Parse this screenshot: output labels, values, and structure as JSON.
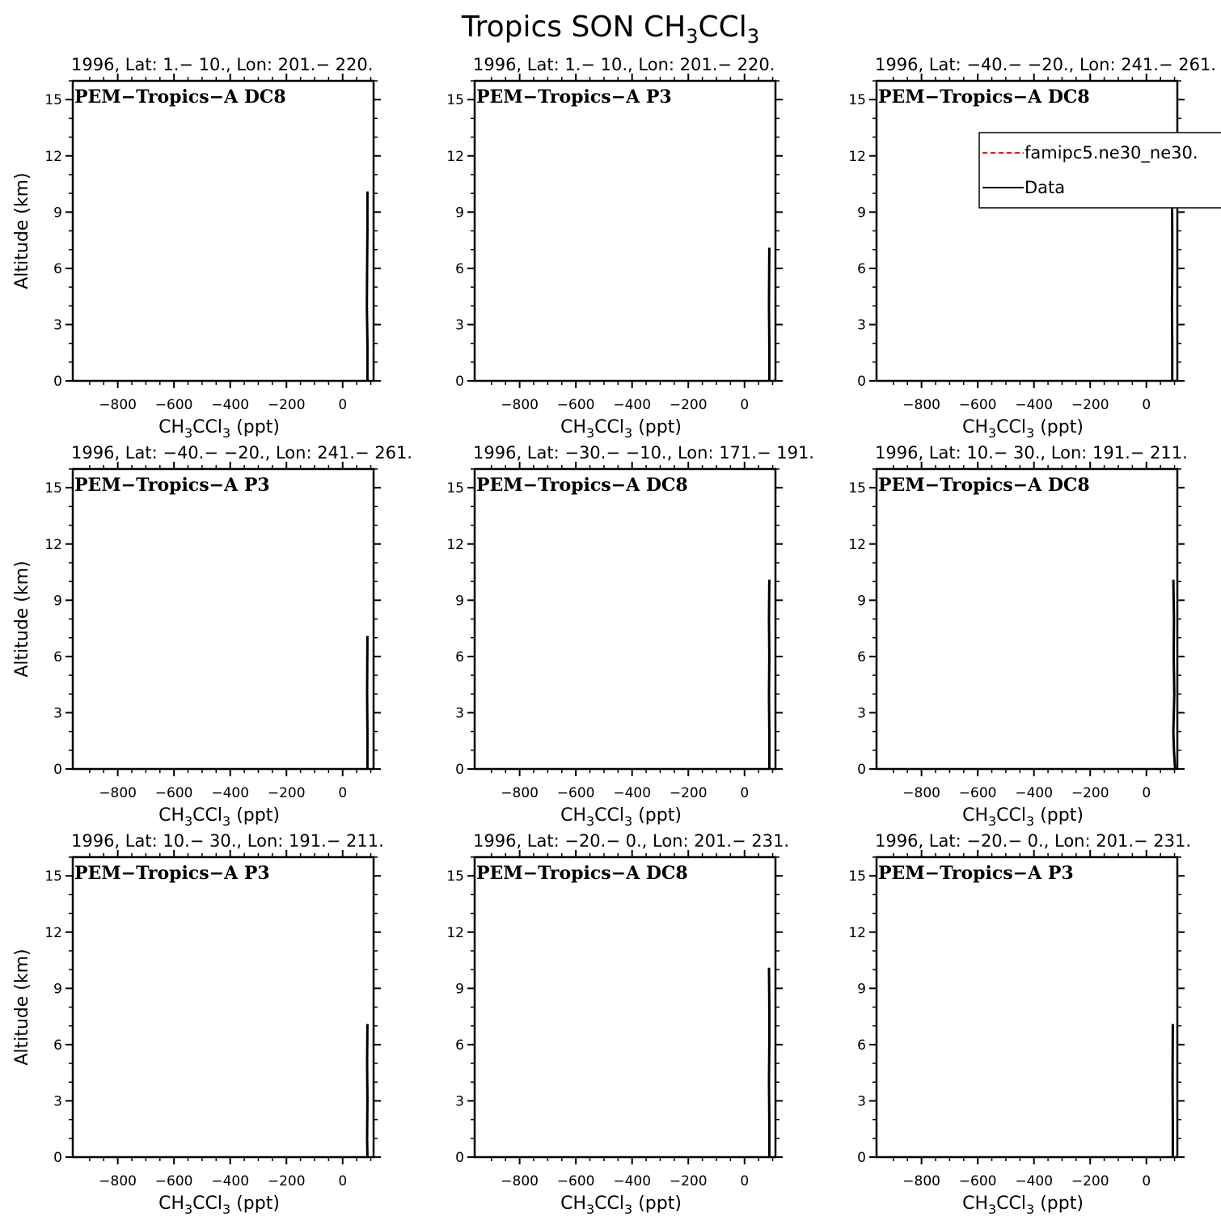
{
  "figure": {
    "title_main": "Tropics SON CH",
    "title_sub": "3",
    "title_tail": "CCl",
    "title_sub2": "3"
  },
  "xaxis": {
    "label_main": "CH",
    "label_sub": "3",
    "label_mid": "CCl",
    "label_sub2": "3",
    "label_tail": " (ppt)",
    "range": [
      -960,
      110
    ],
    "ticks": [
      -800,
      -600,
      -400,
      -200,
      0
    ],
    "tick_labels": [
      "−800",
      "−600",
      "−400",
      "−200",
      "0"
    ]
  },
  "yaxis": {
    "label": "Altitude (km)",
    "range": [
      0,
      16
    ],
    "ticks": [
      0,
      3,
      6,
      9,
      12,
      15
    ],
    "tick_labels": [
      "0",
      "3",
      "6",
      "9",
      "12",
      "15"
    ]
  },
  "legend": {
    "model_label": "famipc5.ne30_ne30.",
    "data_label": "Data",
    "model_color": "#ff0000",
    "data_color": "#000000"
  },
  "chart_data": [
    {
      "type": "line",
      "subtitle": "1996, Lat:  1.−  10., Lon: 201.−  220.",
      "mission": "PEM−Tropics−A DC8",
      "series": [
        {
          "name": "Data",
          "x": [
            88,
            88,
            86,
            87,
            88,
            88
          ],
          "y": [
            0,
            2,
            4,
            6,
            8,
            10.1
          ]
        }
      ]
    },
    {
      "type": "line",
      "subtitle": "1996, Lat:  1.−  10., Lon: 201.−  220.",
      "mission": "PEM−Tropics−A P3",
      "series": [
        {
          "name": "Data",
          "x": [
            88,
            88,
            87,
            88
          ],
          "y": [
            0,
            2,
            4,
            7.1
          ]
        }
      ]
    },
    {
      "type": "line",
      "subtitle": "1996, Lat: −40.−  −20., Lon: 241.−  261.",
      "mission": "PEM−Tropics−A DC8",
      "series": [
        {
          "name": "Data",
          "x": [
            92,
            92,
            91,
            92,
            92,
            91
          ],
          "y": [
            0,
            2,
            4,
            6,
            8,
            10.1
          ]
        }
      ]
    },
    {
      "type": "line",
      "subtitle": "1996, Lat: −40.−  −20., Lon: 241.−  261.",
      "mission": "PEM−Tropics−A P3",
      "series": [
        {
          "name": "Data",
          "x": [
            88,
            88,
            87,
            88
          ],
          "y": [
            0,
            2,
            4,
            7.1
          ]
        }
      ]
    },
    {
      "type": "line",
      "subtitle": "1996, Lat: −30.−  −10., Lon: 171.−  191.",
      "mission": "PEM−Tropics−A DC8",
      "series": [
        {
          "name": "Data",
          "x": [
            88,
            88,
            87,
            88,
            87,
            88
          ],
          "y": [
            0,
            2,
            4,
            6,
            8,
            10.1
          ]
        }
      ]
    },
    {
      "type": "line",
      "subtitle": "1996, Lat:  10.−  30., Lon: 191.−  211.",
      "mission": "PEM−Tropics−A DC8",
      "series": [
        {
          "name": "Data",
          "x": [
            102,
            98,
            96,
            99,
            97,
            98,
            96
          ],
          "y": [
            0,
            1,
            2,
            4,
            6,
            8,
            10.1
          ]
        }
      ]
    },
    {
      "type": "line",
      "subtitle": "1996, Lat:  10.−  30., Lon: 191.−  211.",
      "mission": "PEM−Tropics−A P3",
      "series": [
        {
          "name": "Data",
          "x": [
            88,
            87,
            88,
            87,
            88
          ],
          "y": [
            0,
            1,
            3,
            5,
            7.1
          ]
        }
      ]
    },
    {
      "type": "line",
      "subtitle": "1996, Lat: −20.−  0., Lon: 201.−  231.",
      "mission": "PEM−Tropics−A DC8",
      "series": [
        {
          "name": "Data",
          "x": [
            88,
            88,
            87,
            88,
            88,
            87
          ],
          "y": [
            0,
            2,
            4,
            6,
            8,
            10.1
          ]
        }
      ]
    },
    {
      "type": "line",
      "subtitle": "1996, Lat: −20.−  0., Lon: 201.−  231.",
      "mission": "PEM−Tropics−A P3",
      "series": [
        {
          "name": "Data",
          "x": [
            94,
            94,
            93,
            94
          ],
          "y": [
            0,
            2,
            4,
            7.1
          ]
        }
      ]
    }
  ]
}
